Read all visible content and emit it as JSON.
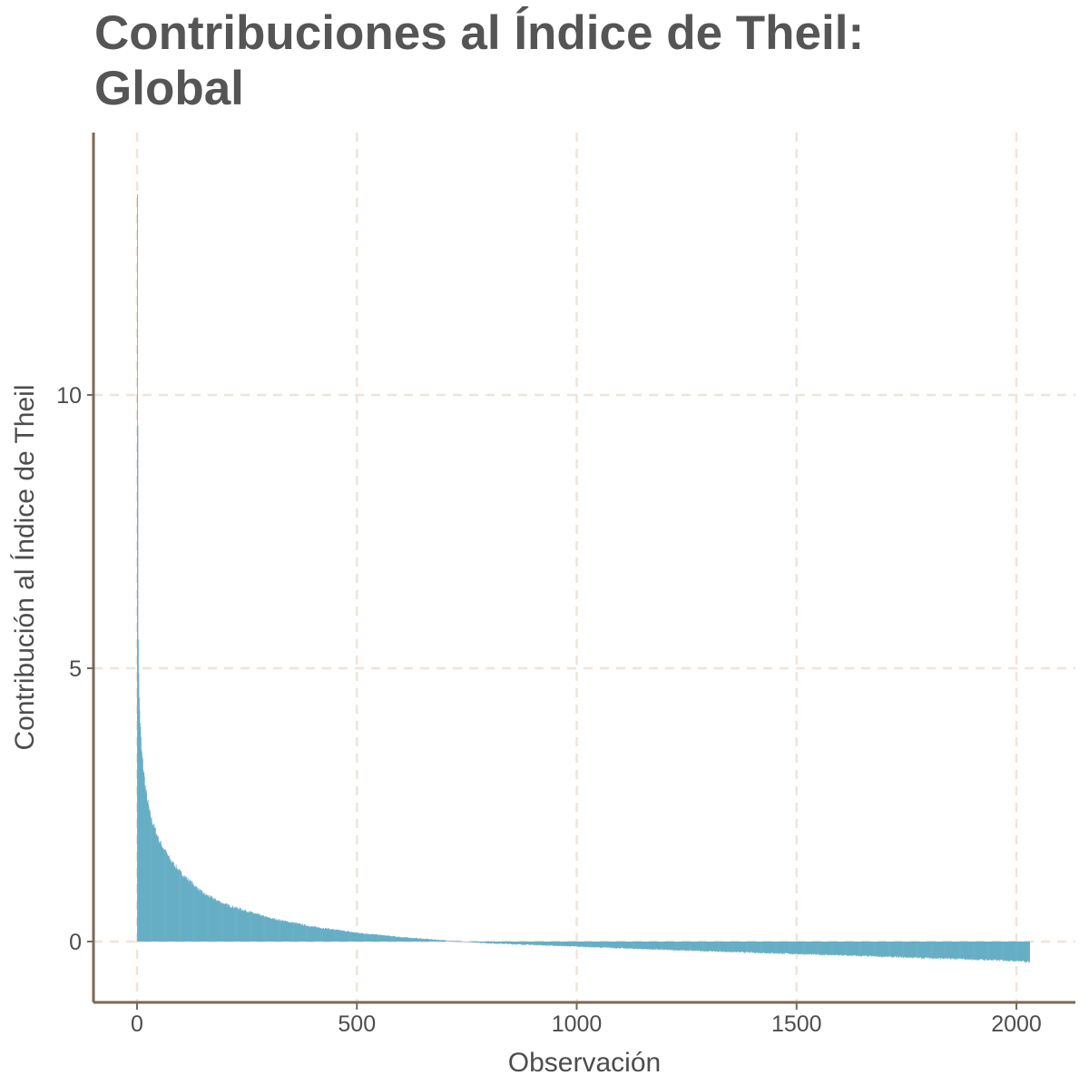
{
  "chart_data": {
    "type": "bar",
    "title": "Contribuciones al Índice de Theil: Global",
    "xlabel": "Observación",
    "ylabel": "Contribución al Índice de Theil",
    "xlim": [
      -100,
      2130
    ],
    "ylim": [
      -1.1,
      14.8
    ],
    "xticks": [
      0,
      500,
      1000,
      1500,
      2000
    ],
    "xtick_labels": [
      "0",
      "500",
      "1000",
      "1500",
      "2000"
    ],
    "yticks": [
      0,
      5,
      10
    ],
    "ytick_labels": [
      "0",
      "5",
      "10"
    ],
    "grid": true,
    "grid_style": "dashed",
    "legend": "none",
    "n_observations": 2030,
    "bar_color": "#67AEC5",
    "grid_color": "#F0E4DA",
    "axis_color": "#7A6A55",
    "series": [
      {
        "x": [
          1,
          2,
          3,
          5,
          10,
          20,
          30,
          50,
          75,
          100,
          150,
          200,
          300,
          400,
          500,
          600,
          700,
          800,
          900,
          1000,
          1200,
          1400,
          1600,
          1800,
          2000,
          2030
        ],
        "values": [
          14.1,
          9.2,
          5.6,
          4.4,
          3.5,
          2.75,
          2.3,
          1.85,
          1.5,
          1.25,
          0.88,
          0.68,
          0.43,
          0.27,
          0.16,
          0.08,
          0.02,
          -0.03,
          -0.06,
          -0.09,
          -0.15,
          -0.2,
          -0.25,
          -0.3,
          -0.35,
          -0.37
        ]
      }
    ]
  }
}
